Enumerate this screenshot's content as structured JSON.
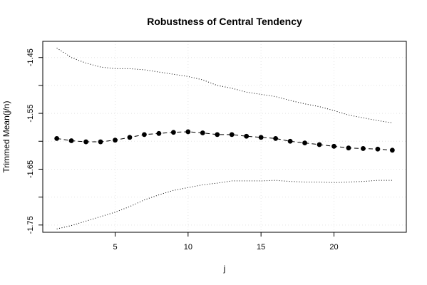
{
  "chart_data": {
    "type": "line",
    "title": "Robustness of Central Tendency",
    "xlabel": "j",
    "ylabel": "Trimmed Mean(j/n)",
    "xlim": [
      0.04,
      24.96
    ],
    "ylim": [
      -1.763,
      -1.421
    ],
    "x_ticks": [
      5,
      10,
      15,
      20
    ],
    "x_tick_labels": [
      "5",
      "10",
      "15",
      "20"
    ],
    "y_ticks": [
      -1.45,
      -1.5,
      -1.55,
      -1.6,
      -1.65,
      -1.7,
      -1.75
    ],
    "y_tick_labels": [
      "-1.45",
      "",
      "-1.55",
      "",
      "-1.65",
      "",
      "-1.75"
    ],
    "grid": true,
    "x": [
      1,
      2,
      3,
      4,
      5,
      6,
      7,
      8,
      9,
      10,
      11,
      12,
      13,
      14,
      15,
      16,
      17,
      18,
      19,
      20,
      21,
      22,
      23,
      24
    ],
    "series": [
      {
        "style": "dashed-points",
        "values": [
          -1.595,
          -1.599,
          -1.601,
          -1.601,
          -1.598,
          -1.593,
          -1.588,
          -1.586,
          -1.584,
          -1.583,
          -1.585,
          -1.588,
          -1.588,
          -1.591,
          -1.593,
          -1.595,
          -1.6,
          -1.603,
          -1.606,
          -1.609,
          -1.612,
          -1.613,
          -1.614,
          -1.616
        ]
      },
      {
        "style": "dotted",
        "values": [
          -1.433,
          -1.45,
          -1.46,
          -1.467,
          -1.47,
          -1.47,
          -1.472,
          -1.476,
          -1.48,
          -1.484,
          -1.49,
          -1.5,
          -1.505,
          -1.512,
          -1.516,
          -1.52,
          -1.527,
          -1.533,
          -1.538,
          -1.545,
          -1.553,
          -1.558,
          -1.563,
          -1.567
        ]
      },
      {
        "style": "dotted",
        "values": [
          -1.757,
          -1.751,
          -1.743,
          -1.735,
          -1.727,
          -1.717,
          -1.705,
          -1.696,
          -1.688,
          -1.683,
          -1.678,
          -1.675,
          -1.671,
          -1.671,
          -1.671,
          -1.67,
          -1.672,
          -1.673,
          -1.673,
          -1.674,
          -1.673,
          -1.672,
          -1.67,
          -1.67
        ]
      }
    ]
  }
}
